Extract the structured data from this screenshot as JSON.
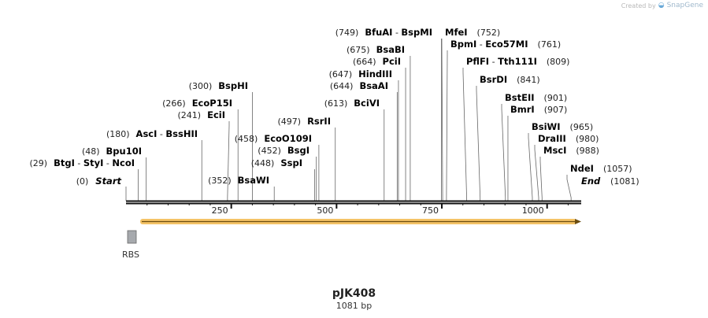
{
  "watermark": {
    "prefix": "Created by",
    "brand": "SnapGene",
    "icon": "snapgene-logo-icon"
  },
  "plasmid": {
    "name": "pJK408",
    "length_label": "1081 bp",
    "length": 1081
  },
  "ruler": {
    "ticks": [
      250,
      500,
      750,
      1000
    ]
  },
  "ends": [
    {
      "label": "Start",
      "pos": 0,
      "pos_label": "(0)"
    },
    {
      "label": "End",
      "pos": 1081,
      "pos_label": "(1081)"
    }
  ],
  "sites": [
    {
      "names": [
        "BtgI",
        "StyI",
        "NcoI"
      ],
      "pos": 29,
      "pos_label": "(29)"
    },
    {
      "names": [
        "Bpu10I"
      ],
      "pos": 48,
      "pos_label": "(48)"
    },
    {
      "names": [
        "AscI",
        "BssHII"
      ],
      "pos": 180,
      "pos_label": "(180)"
    },
    {
      "names": [
        "EciI"
      ],
      "pos": 241,
      "pos_label": "(241)"
    },
    {
      "names": [
        "EcoP15I"
      ],
      "pos": 266,
      "pos_label": "(266)"
    },
    {
      "names": [
        "BspHI"
      ],
      "pos": 300,
      "pos_label": "(300)"
    },
    {
      "names": [
        "BsaWI"
      ],
      "pos": 352,
      "pos_label": "(352)"
    },
    {
      "names": [
        "SspI"
      ],
      "pos": 448,
      "pos_label": "(448)"
    },
    {
      "names": [
        "BsgI"
      ],
      "pos": 452,
      "pos_label": "(452)"
    },
    {
      "names": [
        "EcoO109I"
      ],
      "pos": 458,
      "pos_label": "(458)"
    },
    {
      "names": [
        "RsrII"
      ],
      "pos": 497,
      "pos_label": "(497)"
    },
    {
      "names": [
        "BciVI"
      ],
      "pos": 613,
      "pos_label": "(613)"
    },
    {
      "names": [
        "BsaAI"
      ],
      "pos": 644,
      "pos_label": "(644)"
    },
    {
      "names": [
        "HindIII"
      ],
      "pos": 647,
      "pos_label": "(647)"
    },
    {
      "names": [
        "PciI"
      ],
      "pos": 664,
      "pos_label": "(664)"
    },
    {
      "names": [
        "BsaBI"
      ],
      "pos": 675,
      "pos_label": "(675)"
    },
    {
      "names": [
        "BfuAI",
        "BspMI"
      ],
      "pos": 749,
      "pos_label": "(749)"
    },
    {
      "names": [
        "MfeI"
      ],
      "pos": 752,
      "pos_label": "(752)"
    },
    {
      "names": [
        "BpmI",
        "Eco57MI"
      ],
      "pos": 761,
      "pos_label": "(761)"
    },
    {
      "names": [
        "PflFI",
        "Tth111I"
      ],
      "pos": 809,
      "pos_label": "(809)"
    },
    {
      "names": [
        "BsrDI"
      ],
      "pos": 841,
      "pos_label": "(841)"
    },
    {
      "names": [
        "BstEII"
      ],
      "pos": 901,
      "pos_label": "(901)"
    },
    {
      "names": [
        "BmrI"
      ],
      "pos": 907,
      "pos_label": "(907)"
    },
    {
      "names": [
        "BsiWI"
      ],
      "pos": 965,
      "pos_label": "(965)"
    },
    {
      "names": [
        "DraIII"
      ],
      "pos": 980,
      "pos_label": "(980)"
    },
    {
      "names": [
        "MscI"
      ],
      "pos": 988,
      "pos_label": "(988)"
    },
    {
      "names": [
        "NdeI"
      ],
      "pos": 1057,
      "pos_label": "(1057)"
    }
  ],
  "features": [
    {
      "name": "RBS",
      "type": "box",
      "color": "#a6a9ad"
    },
    {
      "name": "",
      "type": "arrow",
      "color": "#f2b84b"
    }
  ],
  "colors": {
    "backbone": "#111111",
    "arrow": "#f2b84b",
    "arrow_line": "#6b4d10",
    "rbs": "#a6a9ad"
  }
}
